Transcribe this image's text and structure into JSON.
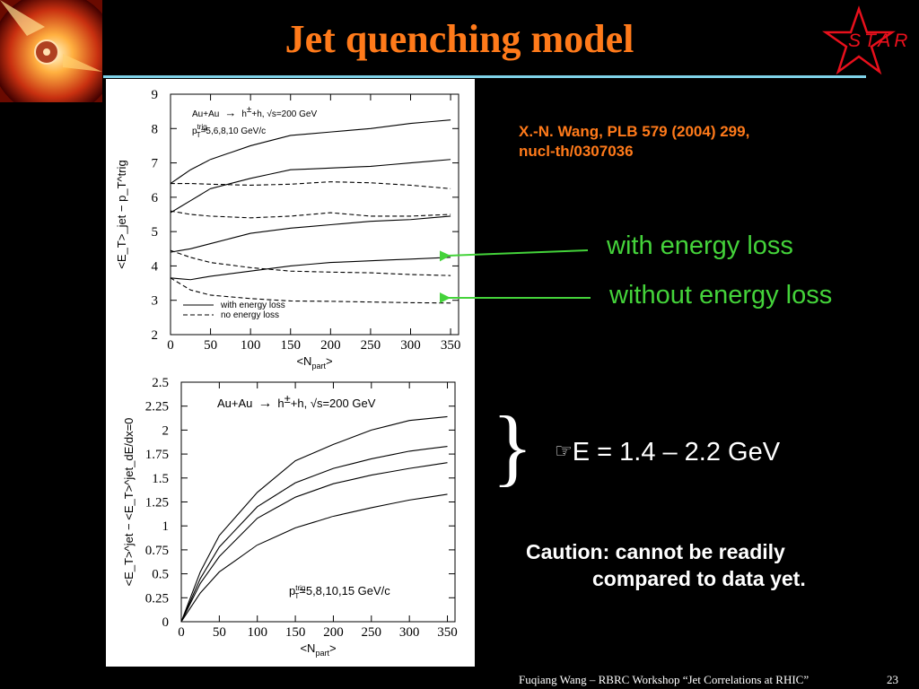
{
  "slide": {
    "title": "Jet quenching model",
    "star_logo_text": "STAR",
    "citation_line1": "X.-N. Wang, PLB 579 (2004) 299,",
    "citation_line2": "nucl-th/0307036",
    "annotation_with": "with energy loss",
    "annotation_without": "without energy loss",
    "brace": "}",
    "delta_symbol": "☞",
    "delta_text": "E = 1.4 – 2.2 GeV",
    "caution_line1": "Caution: cannot be readily",
    "caution_line2": "compared to data yet.",
    "footer": "Fuqiang Wang – RBRC Workshop “Jet Correlations at RHIC”",
    "page_number": "23",
    "colors": {
      "title": "#ff7a1a",
      "annotation": "#44d33a",
      "rule": "#7fd2e8",
      "logo": "#e8101c"
    }
  },
  "chart_data": [
    {
      "type": "line",
      "title": "",
      "annotation_line1_parts": [
        "Au+Au",
        "→",
        "h",
        "±",
        "+h, √s=200 GeV"
      ],
      "annotation_line2_parts": [
        "p",
        "trig",
        "T",
        "=5,6,8,10 GeV/c"
      ],
      "xlabel": "<N",
      "xlabel_sub": "part",
      "xlabel_end": ">",
      "ylabel": "<E_T>_jet − p_T^trig",
      "xlim": [
        0,
        360
      ],
      "ylim": [
        2,
        9
      ],
      "x_ticks": [
        "0",
        "50",
        "100",
        "150",
        "200",
        "250",
        "300",
        "350"
      ],
      "y_ticks": [
        "2",
        "3",
        "4",
        "5",
        "6",
        "7",
        "8",
        "9"
      ],
      "legend": [
        {
          "label": "with energy loss",
          "style": "solid"
        },
        {
          "label": "no energy loss",
          "style": "dashed"
        }
      ],
      "legend_position": "bottom-left",
      "x": [
        0,
        25,
        50,
        100,
        150,
        200,
        250,
        300,
        350
      ],
      "series": [
        {
          "style": "solid",
          "values": [
            6.4,
            6.8,
            7.1,
            7.5,
            7.8,
            7.9,
            8.0,
            8.15,
            8.25
          ]
        },
        {
          "style": "solid",
          "values": [
            5.55,
            5.9,
            6.25,
            6.55,
            6.8,
            6.85,
            6.9,
            7.0,
            7.1
          ]
        },
        {
          "style": "solid",
          "values": [
            4.4,
            4.5,
            4.65,
            4.95,
            5.1,
            5.2,
            5.3,
            5.35,
            5.45
          ]
        },
        {
          "style": "solid",
          "values": [
            3.65,
            3.6,
            3.7,
            3.85,
            4.0,
            4.1,
            4.15,
            4.2,
            4.25
          ]
        },
        {
          "style": "dashed",
          "values": [
            6.4,
            6.4,
            6.38,
            6.35,
            6.38,
            6.45,
            6.42,
            6.35,
            6.25
          ]
        },
        {
          "style": "dashed",
          "values": [
            5.6,
            5.5,
            5.45,
            5.4,
            5.45,
            5.55,
            5.45,
            5.45,
            5.5
          ]
        },
        {
          "style": "dashed",
          "values": [
            4.45,
            4.25,
            4.1,
            3.95,
            3.85,
            3.82,
            3.8,
            3.75,
            3.72
          ]
        },
        {
          "style": "dashed",
          "values": [
            3.65,
            3.3,
            3.15,
            3.05,
            2.98,
            2.97,
            2.95,
            2.93,
            2.92
          ]
        }
      ]
    },
    {
      "type": "line",
      "title": "",
      "annotation_line1_parts": [
        "Au+Au",
        "→",
        "h",
        "±",
        "+h, √s=200 GeV"
      ],
      "annotation_line2_parts": [
        "p",
        "trig",
        "T",
        "=5,8,10,15 GeV/c"
      ],
      "xlabel": "<N",
      "xlabel_sub": "part",
      "xlabel_end": ">",
      "ylabel": "<E_T>^jet − <E_T>^jet_dE/dx=0",
      "xlim": [
        0,
        360
      ],
      "ylim": [
        0,
        2.5
      ],
      "x_ticks": [
        "0",
        "50",
        "100",
        "150",
        "200",
        "250",
        "300",
        "350"
      ],
      "y_ticks": [
        "0",
        "0.25",
        "0.5",
        "0.75",
        "1",
        "1.25",
        "1.5",
        "1.75",
        "2",
        "2.25",
        "2.5"
      ],
      "x": [
        0,
        25,
        50,
        100,
        150,
        200,
        250,
        300,
        350
      ],
      "series": [
        {
          "style": "solid",
          "values": [
            0,
            0.52,
            0.9,
            1.35,
            1.68,
            1.85,
            2.0,
            2.1,
            2.14
          ]
        },
        {
          "style": "solid",
          "values": [
            0,
            0.45,
            0.78,
            1.2,
            1.45,
            1.6,
            1.7,
            1.78,
            1.83
          ]
        },
        {
          "style": "solid",
          "values": [
            0,
            0.4,
            0.68,
            1.08,
            1.3,
            1.44,
            1.53,
            1.6,
            1.66
          ]
        },
        {
          "style": "solid",
          "values": [
            0,
            0.3,
            0.52,
            0.8,
            0.98,
            1.1,
            1.19,
            1.27,
            1.33
          ]
        }
      ]
    }
  ]
}
